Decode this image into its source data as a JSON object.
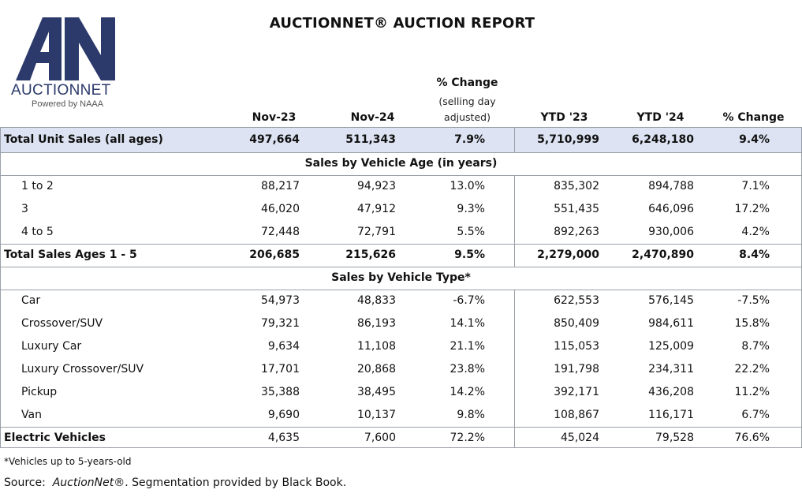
{
  "logo": {
    "name": "AUCTIONNET",
    "tagline": "Powered by NAAA",
    "color": "#2b3a6b"
  },
  "title": "AUCTIONNET® AUCTION REPORT",
  "columns": {
    "nov23": "Nov-23",
    "nov24": "Nov-24",
    "pct_top": "% Change",
    "pct_sub1": "(selling day",
    "pct_sub2": "adjusted)",
    "ytd23": "YTD '23",
    "ytd24": "YTD '24",
    "ytd_pct": "% Change"
  },
  "total_unit": {
    "label": "Total Unit Sales (all ages)",
    "values": [
      "497,664",
      "511,343",
      "7.9%",
      "5,710,999",
      "6,248,180",
      "9.4%"
    ]
  },
  "age_section": "Sales by Vehicle Age (in years)",
  "age_rows": [
    {
      "label": "1 to 2",
      "values": [
        "88,217",
        "94,923",
        "13.0%",
        "835,302",
        "894,788",
        "7.1%"
      ]
    },
    {
      "label": "3",
      "values": [
        "46,020",
        "47,912",
        "9.3%",
        "551,435",
        "646,096",
        "17.2%"
      ]
    },
    {
      "label": "4 to 5",
      "values": [
        "72,448",
        "72,791",
        "5.5%",
        "892,263",
        "930,006",
        "4.2%"
      ]
    }
  ],
  "total_ages": {
    "label": "Total Sales Ages 1 - 5",
    "values": [
      "206,685",
      "215,626",
      "9.5%",
      "2,279,000",
      "2,470,890",
      "8.4%"
    ]
  },
  "type_section": "Sales by Vehicle Type*",
  "type_rows": [
    {
      "label": "Car",
      "values": [
        "54,973",
        "48,833",
        "-6.7%",
        "622,553",
        "576,145",
        "-7.5%"
      ]
    },
    {
      "label": "Crossover/SUV",
      "values": [
        "79,321",
        "86,193",
        "14.1%",
        "850,409",
        "984,611",
        "15.8%"
      ]
    },
    {
      "label": "Luxury Car",
      "values": [
        "9,634",
        "11,108",
        "21.1%",
        "115,053",
        "125,009",
        "8.7%"
      ]
    },
    {
      "label": "Luxury Crossover/SUV",
      "values": [
        "17,701",
        "20,868",
        "23.8%",
        "191,798",
        "234,311",
        "22.2%"
      ]
    },
    {
      "label": "Pickup",
      "values": [
        "35,388",
        "38,495",
        "14.2%",
        "392,171",
        "436,208",
        "11.2%"
      ]
    },
    {
      "label": "Van",
      "values": [
        "9,690",
        "10,137",
        "9.8%",
        "108,867",
        "116,171",
        "6.7%"
      ]
    }
  ],
  "ev": {
    "label": "Electric Vehicles",
    "values": [
      "4,635",
      "7,600",
      "72.2%",
      "45,024",
      "79,528",
      "76.6%"
    ]
  },
  "footnote": "*Vehicles up to 5-years-old",
  "source": {
    "prefix": "Source:",
    "name": "AuctionNet®",
    "rest": ". Segmentation provided by Black Book."
  },
  "colors": {
    "highlight": "#dde3f2",
    "rule": "#9aa0a8",
    "logo": "#2b3a6b"
  }
}
